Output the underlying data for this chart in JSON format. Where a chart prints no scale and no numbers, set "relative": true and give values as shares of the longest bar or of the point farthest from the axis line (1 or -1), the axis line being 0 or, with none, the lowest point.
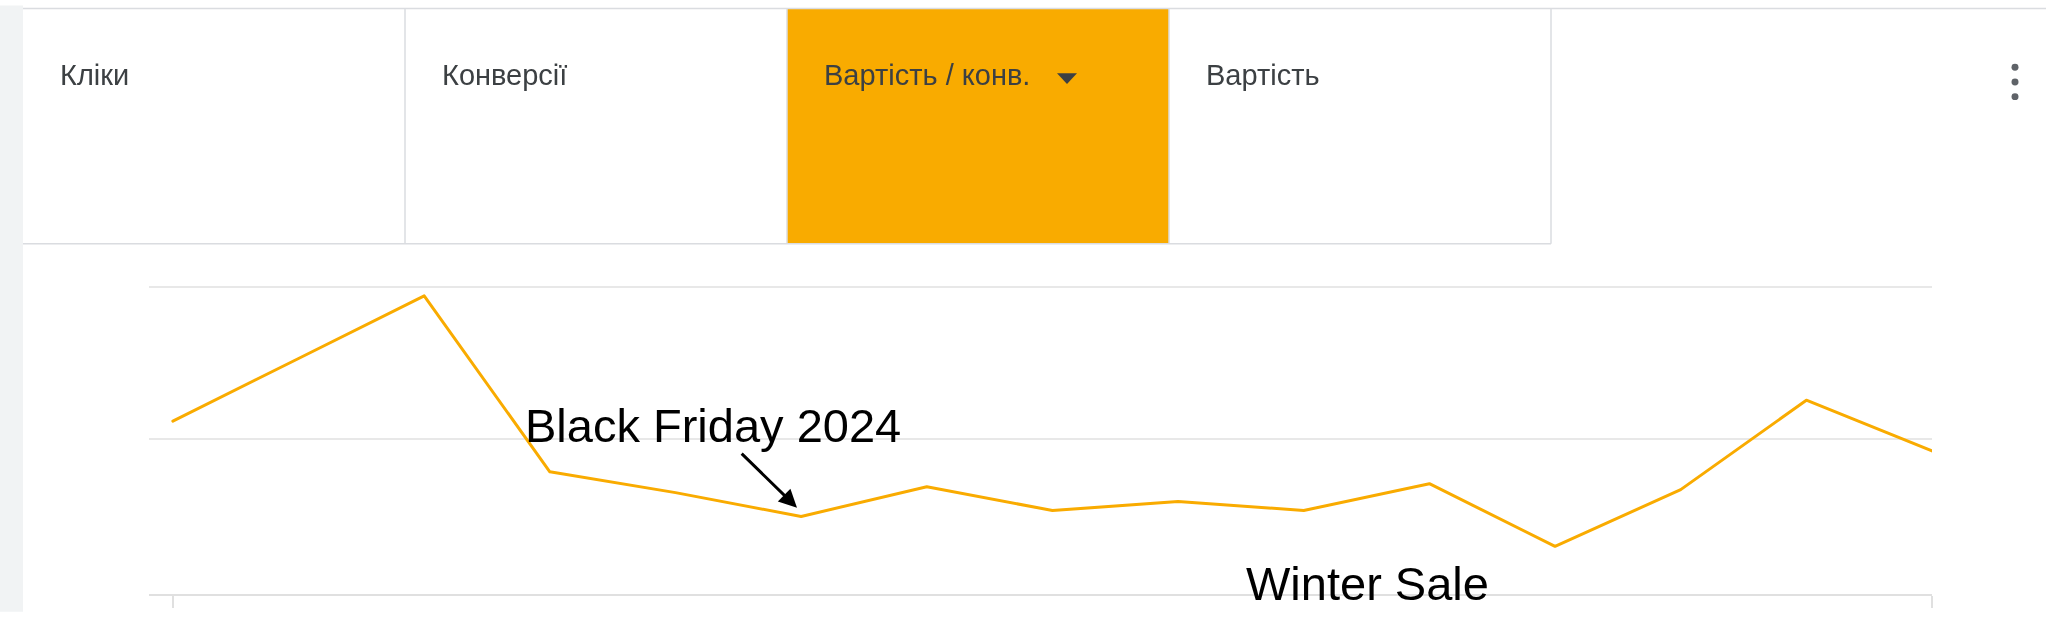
{
  "chart_data": [
    {
      "type": "other",
      "categories": [
        "Кліки",
        "Конверсії",
        "Вартість / конв.",
        "Вартість"
      ],
      "colors": [
        "#ffffff",
        "#ffffff",
        "#f9ab00",
        "#ffffff"
      ]
    },
    {
      "type": "line",
      "categories": [
        null,
        null,
        null,
        null,
        null,
        null,
        null,
        null,
        null,
        null,
        null,
        null,
        null,
        null,
        null
      ],
      "series": [
        {
          "color": "#f9ab00",
          "values": [
            0.58,
            0.79,
            1,
            0.41,
            0.34,
            0.26,
            0.36,
            0.28,
            0.31,
            0.28,
            0.37,
            0.16,
            0.35,
            0.65,
            0.48
          ]
        }
      ],
      "relative": true,
      "ref_lines": [
        {
          "axis": "y",
          "value": 0.52,
          "color": "#e0e0e0"
        },
        {
          "axis": "y",
          "value": 1.03,
          "color": "#e0e0e0"
        }
      ],
      "annotations": [
        "Black Friday 2024",
        "Winter Sale"
      ]
    }
  ]
}
